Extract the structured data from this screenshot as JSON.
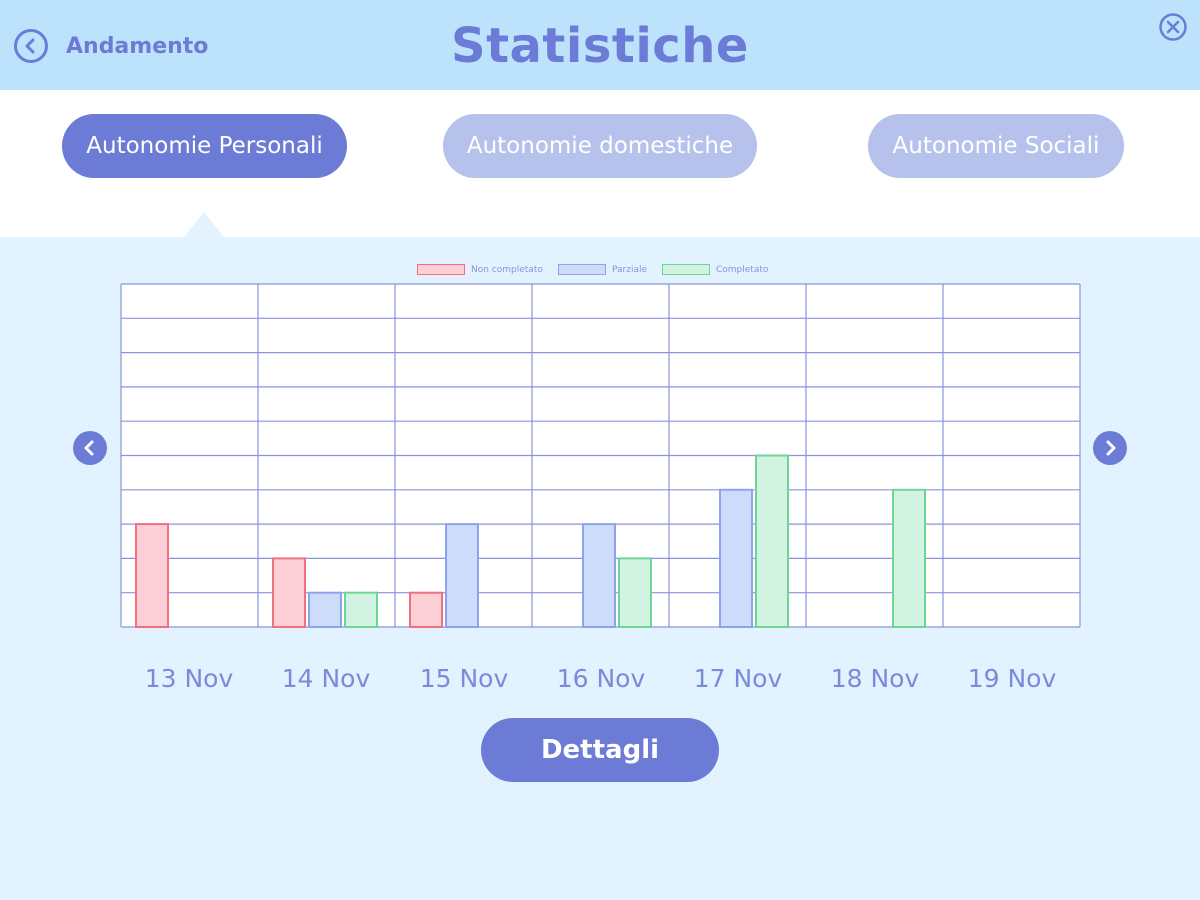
{
  "header": {
    "back_label": "Andamento",
    "title": "Statistiche",
    "back_icon": "chevron-left-icon",
    "close_icon": "close-icon"
  },
  "tabs": [
    {
      "label": "Autonomie Personali",
      "active": true
    },
    {
      "label": "Autonomie domestiche",
      "active": false
    },
    {
      "label": "Autonomie Sociali",
      "active": false
    }
  ],
  "colors": {
    "accent": "#6b7bd6",
    "header_bg": "#bde3fc",
    "page_bg": "#e2f2fe",
    "tab_inactive": "#b6c1ec"
  },
  "chart_data": {
    "type": "bar",
    "categories": [
      "13 Nov",
      "14 Nov",
      "15 Nov",
      "16 Nov",
      "17 Nov",
      "18 Nov",
      "19 Nov"
    ],
    "series": [
      {
        "name": "Non completato",
        "values": [
          3,
          2,
          1,
          0,
          0,
          0,
          0
        ],
        "fill": "#fdd0d8",
        "stroke": "#f0707f"
      },
      {
        "name": "Parziale",
        "values": [
          0,
          1,
          3,
          3,
          4,
          0,
          0
        ],
        "fill": "#cddcfb",
        "stroke": "#8ea3ee"
      },
      {
        "name": "Completato",
        "values": [
          0,
          1,
          0,
          2,
          5,
          4,
          0
        ],
        "fill": "#d2f3e1",
        "stroke": "#6dd696"
      }
    ],
    "ylim": [
      0,
      10
    ],
    "grid": true,
    "legend_position": "top-center"
  },
  "actions": {
    "details_label": "Dettagli",
    "prev_icon": "chevron-left-icon",
    "next_icon": "chevron-right-icon"
  }
}
